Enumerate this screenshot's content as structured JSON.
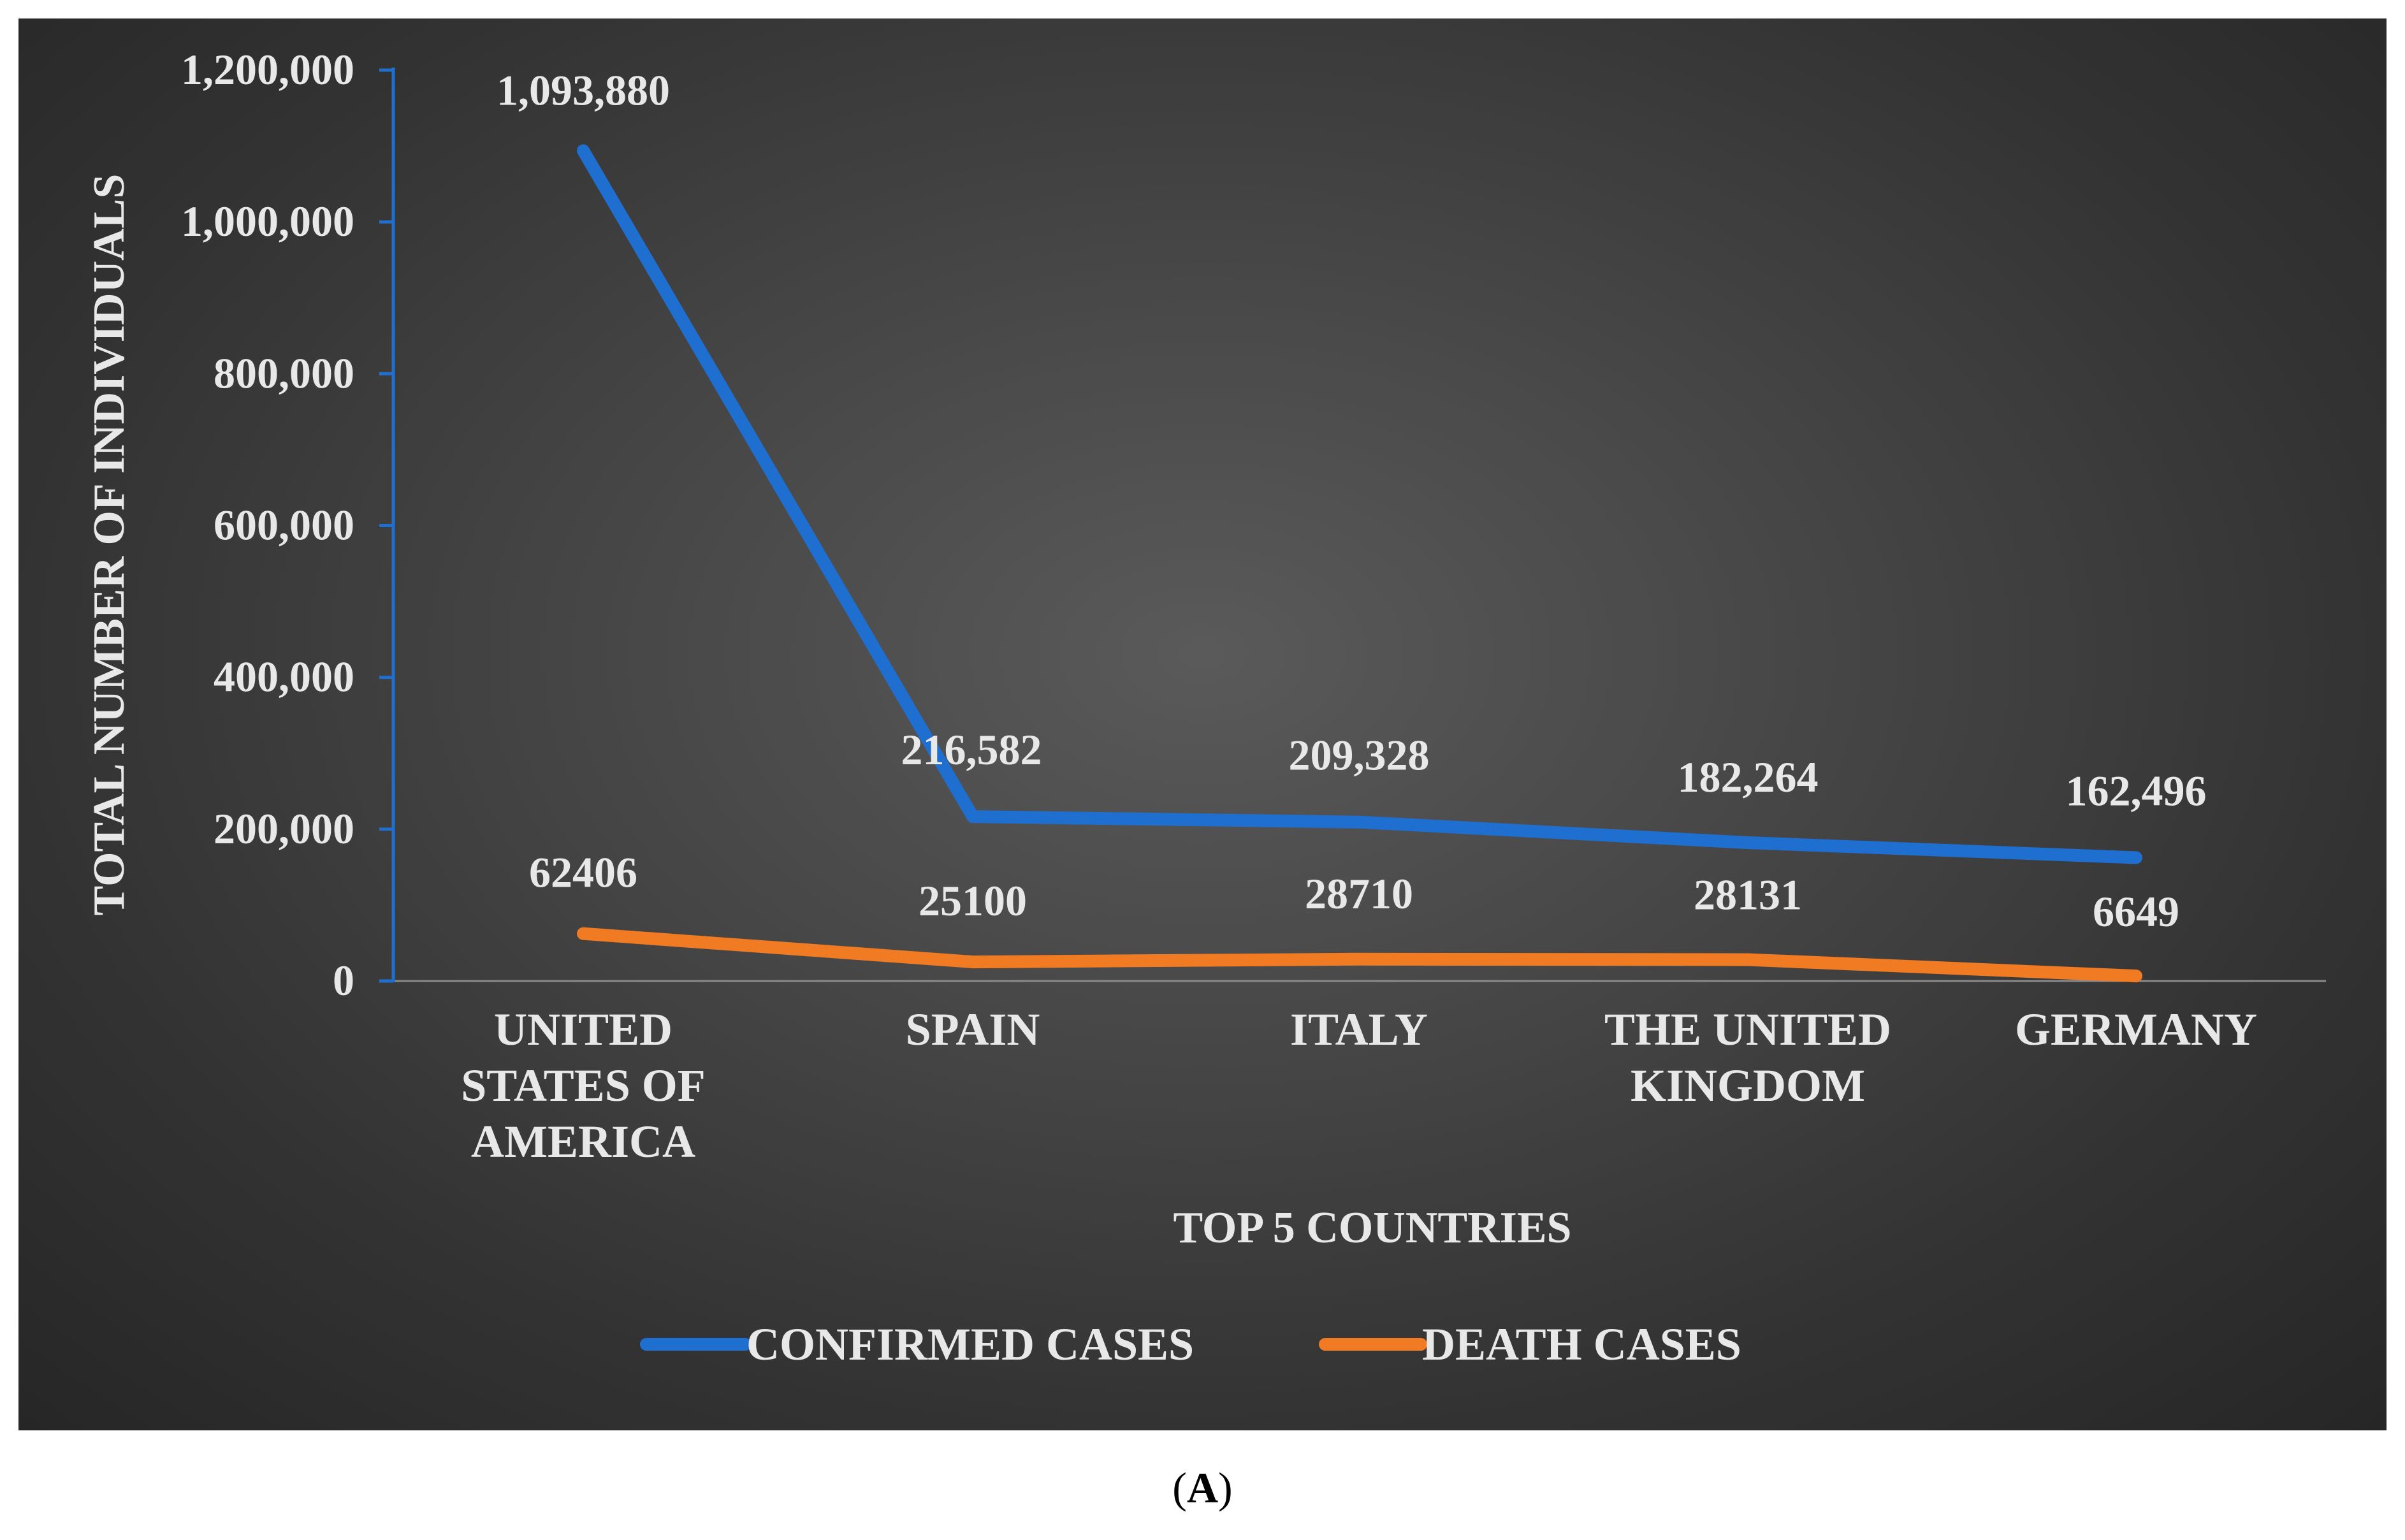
{
  "chart_data": {
    "type": "line",
    "categories": [
      [
        "UNITED",
        "STATES OF",
        "AMERICA"
      ],
      [
        "SPAIN"
      ],
      [
        "ITALY"
      ],
      [
        "THE UNITED",
        "KINGDOM"
      ],
      [
        "GERMANY"
      ]
    ],
    "series": [
      {
        "name": "CONFIRMED CASES",
        "color": "#1f6fd1",
        "values": [
          1093880,
          216582,
          209328,
          182264,
          162496
        ],
        "labels": [
          "1,093,880",
          "216,582",
          "209,328",
          "182,264",
          "162,496"
        ]
      },
      {
        "name": "DEATH CASES",
        "color": "#f07b22",
        "values": [
          62406,
          25100,
          28710,
          28131,
          6649
        ],
        "labels": [
          "62406",
          "25100",
          "28710",
          "28131",
          "6649"
        ]
      }
    ],
    "xlabel": "TOP 5 COUNTRIES",
    "ylabel": "TOTAL NUMBER OF INDIVIDUALS",
    "ylim": [
      0,
      1200000
    ],
    "yticks": [
      0,
      200000,
      400000,
      600000,
      800000,
      1000000,
      1200000
    ],
    "ytick_labels": [
      "0",
      "200,000",
      "400,000",
      "600,000",
      "800,000",
      "1,000,000",
      "1,200,000"
    ],
    "grid": false,
    "legend": "bottom"
  },
  "caption": {
    "open": "(",
    "letter": "A",
    "close": ")"
  }
}
